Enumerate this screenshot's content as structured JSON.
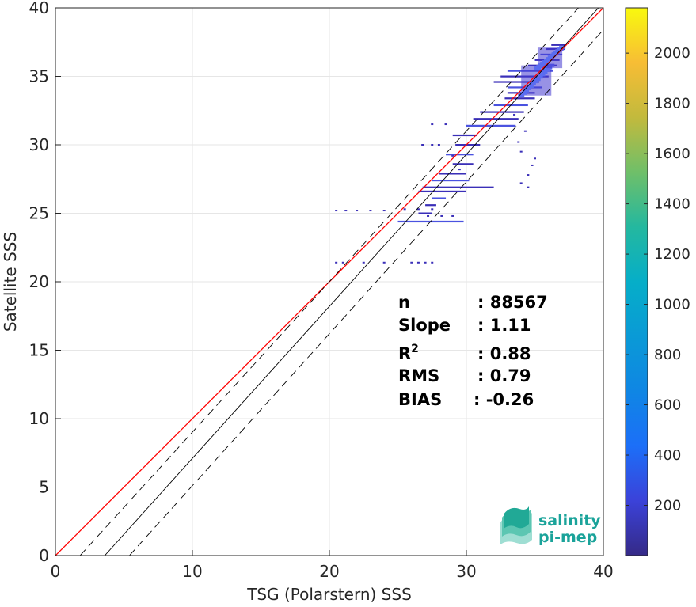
{
  "chart_data": {
    "type": "heatmap",
    "xlabel": "TSG (Polarstern) SSS",
    "ylabel": "Satellite SSS",
    "xlim": [
      0,
      40
    ],
    "ylim": [
      0,
      40
    ],
    "xticks": [
      0,
      10,
      20,
      30,
      40
    ],
    "yticks": [
      0,
      5,
      10,
      15,
      20,
      25,
      30,
      35,
      40
    ],
    "grid": true,
    "colorbar": {
      "range": [
        0,
        2180
      ],
      "ticks": [
        200,
        400,
        600,
        800,
        1000,
        1200,
        1400,
        1600,
        1800,
        2000
      ],
      "colormap": "parula"
    },
    "lines": [
      {
        "name": "1:1 line",
        "color": "#ff0000",
        "style": "solid",
        "x": [
          0,
          40
        ],
        "y": [
          0,
          40
        ]
      },
      {
        "name": "regression",
        "color": "#000000",
        "style": "solid",
        "x": [
          3.6,
          40
        ],
        "y": [
          0,
          40.4
        ]
      },
      {
        "name": "regression + error",
        "color": "#000000",
        "style": "dashed",
        "x": [
          1.8,
          40
        ],
        "y": [
          0,
          42.0
        ]
      },
      {
        "name": "regression - error",
        "color": "#000000",
        "style": "dashed",
        "x": [
          5.4,
          40
        ],
        "y": [
          0,
          38.4
        ]
      }
    ],
    "density_segments": [
      {
        "x": [
          25.0,
          29.8
        ],
        "y": 24.4
      },
      {
        "x": [
          26.5,
          27.5
        ],
        "y": 25.0
      },
      {
        "x": [
          27.0,
          27.8
        ],
        "y": 25.6
      },
      {
        "x": [
          27.5,
          28.5
        ],
        "y": 26.1
      },
      {
        "x": [
          26.5,
          30.0
        ],
        "y": 26.6
      },
      {
        "x": [
          26.8,
          32.0
        ],
        "y": 26.9
      },
      {
        "x": [
          27.5,
          30.2
        ],
        "y": 27.4
      },
      {
        "x": [
          28.0,
          30.0
        ],
        "y": 27.9
      },
      {
        "x": [
          29.0,
          30.5
        ],
        "y": 28.6
      },
      {
        "x": [
          28.5,
          30.5
        ],
        "y": 29.3
      },
      {
        "x": [
          29.2,
          31.0
        ],
        "y": 30.0
      },
      {
        "x": [
          29.0,
          30.8
        ],
        "y": 30.7
      },
      {
        "x": [
          30.0,
          33.6
        ],
        "y": 31.4
      },
      {
        "x": [
          30.5,
          33.8
        ],
        "y": 31.9
      },
      {
        "x": [
          31.0,
          34.2
        ],
        "y": 32.4
      },
      {
        "x": [
          32.0,
          34.5
        ],
        "y": 32.9
      },
      {
        "x": [
          32.8,
          35.0
        ],
        "y": 33.4
      },
      {
        "x": [
          33.0,
          35.0
        ],
        "y": 33.8
      },
      {
        "x": [
          33.0,
          35.5
        ],
        "y": 34.2
      },
      {
        "x": [
          32.0,
          35.3
        ],
        "y": 34.6
      },
      {
        "x": [
          32.5,
          36.0
        ],
        "y": 35.0
      },
      {
        "x": [
          33.0,
          36.3
        ],
        "y": 35.4
      },
      {
        "x": [
          34.5,
          36.6
        ],
        "y": 35.8
      },
      {
        "x": [
          35.0,
          36.8
        ],
        "y": 36.2
      },
      {
        "x": [
          35.4,
          37.0
        ],
        "y": 36.6
      },
      {
        "x": [
          35.8,
          37.2
        ],
        "y": 37.0
      },
      {
        "x": [
          36.2,
          37.3
        ],
        "y": 37.3
      }
    ],
    "density_dots": [
      [
        20.5,
        21.4
      ],
      [
        21.0,
        21.4
      ],
      [
        22.5,
        21.4
      ],
      [
        24.0,
        21.4
      ],
      [
        26.0,
        21.4
      ],
      [
        26.5,
        21.4
      ],
      [
        27.0,
        21.4
      ],
      [
        27.5,
        21.4
      ],
      [
        20.5,
        25.2
      ],
      [
        21.2,
        25.2
      ],
      [
        22.0,
        25.2
      ],
      [
        23.0,
        25.2
      ],
      [
        24.0,
        25.2
      ],
      [
        25.5,
        25.3
      ],
      [
        26.5,
        25.3
      ],
      [
        27.5,
        25.3
      ],
      [
        27.2,
        24.8
      ],
      [
        28.2,
        24.8
      ],
      [
        29.0,
        24.8
      ],
      [
        26.8,
        30.0
      ],
      [
        27.5,
        30.0
      ],
      [
        28.0,
        30.0
      ],
      [
        27.5,
        31.5
      ],
      [
        28.5,
        31.5
      ],
      [
        29.0,
        29.2
      ],
      [
        29.5,
        28.2
      ],
      [
        33.5,
        32.2
      ],
      [
        33.8,
        30.2
      ],
      [
        34.0,
        29.5
      ],
      [
        34.5,
        27.8
      ],
      [
        34.0,
        27.2
      ],
      [
        34.5,
        26.9
      ],
      [
        34.8,
        28.5
      ],
      [
        35.0,
        29.0
      ],
      [
        34.3,
        31.0
      ]
    ],
    "hotspots": [
      {
        "x": [
          34.0,
          36.2
        ],
        "y": [
          33.6,
          35.8
        ],
        "value": 400
      },
      {
        "x": [
          35.2,
          37.0
        ],
        "y": [
          35.6,
          37.1
        ],
        "value": 300
      }
    ],
    "annotation": {
      "rows": [
        {
          "label": "n",
          "value": ": 88567"
        },
        {
          "label": "Slope",
          "value": ": 1.11"
        },
        {
          "label": "R",
          "sup": "2",
          "value": ": 0.88"
        },
        {
          "label": "RMS",
          "value": ": 0.79"
        },
        {
          "label": "BIAS",
          "value": ": -0.26"
        }
      ]
    }
  },
  "logo": {
    "line1": "salinity",
    "line2": "pi-mep"
  },
  "colors": {
    "one_to_one": "#ff0000",
    "regression": "#000000",
    "density_low": "#3a2fb8",
    "density_mid": "#4a52e0",
    "logo": "#1aa39a"
  }
}
